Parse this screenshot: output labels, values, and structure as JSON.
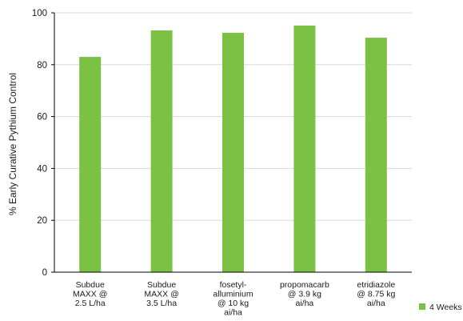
{
  "chart_data": {
    "type": "bar",
    "title": "",
    "xlabel": "",
    "ylabel": "% Early Curative Pythium Control",
    "ylim": [
      0,
      100
    ],
    "yticks": [
      0,
      20,
      40,
      60,
      80,
      100
    ],
    "grid": true,
    "legend_position": "bottom-right",
    "categories": [
      [
        "Subdue",
        "MAXX @",
        "2.5 L/ha"
      ],
      [
        "Subdue",
        "MAXX @",
        "3.5 L/ha"
      ],
      [
        "fosetyl-",
        "alluminium",
        "@ 10 kg",
        "ai/ha"
      ],
      [
        "propomacarb",
        "@ 3.9 kg",
        "ai/ha"
      ],
      [
        "etridiazole",
        "@ 8.75 kg",
        "ai/ha"
      ]
    ],
    "series": [
      {
        "name": "4 Weeks",
        "color": "#7bc143",
        "values": [
          83,
          93.2,
          92.3,
          95.1,
          90.4
        ]
      }
    ]
  }
}
